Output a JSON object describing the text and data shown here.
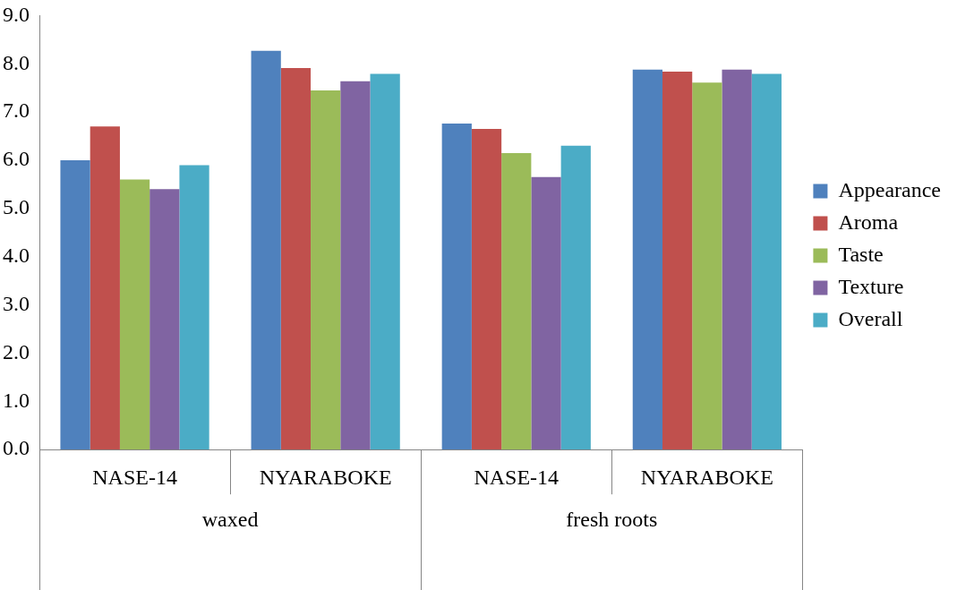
{
  "chart_data": {
    "type": "bar",
    "categories": [
      "NASE-14",
      "NYARABOKE",
      "NASE-14",
      "NYARABOKE"
    ],
    "annotations": [
      "waxed",
      "fresh roots"
    ],
    "series": [
      {
        "name": "Appearance",
        "color": "#4f81bd",
        "values": [
          6.0,
          8.27,
          6.76,
          7.88
        ]
      },
      {
        "name": "Aroma",
        "color": "#c0504d",
        "values": [
          6.7,
          7.91,
          6.65,
          7.84
        ]
      },
      {
        "name": "Taste",
        "color": "#9bbb59",
        "values": [
          5.6,
          7.45,
          6.15,
          7.61
        ]
      },
      {
        "name": "Texture",
        "color": "#8064a2",
        "values": [
          5.4,
          7.64,
          5.65,
          7.88
        ]
      },
      {
        "name": "Overall",
        "color": "#4bacc6",
        "values": [
          5.9,
          7.79,
          6.3,
          7.79
        ]
      }
    ],
    "ylim": [
      0,
      9
    ],
    "yticks": [
      {
        "value": 0,
        "label": "0.0"
      },
      {
        "value": 1,
        "label": "1.0"
      },
      {
        "value": 2,
        "label": "2.0"
      },
      {
        "value": 3,
        "label": "3.0"
      },
      {
        "value": 4,
        "label": "4.0"
      },
      {
        "value": 5,
        "label": "5.0"
      },
      {
        "value": 6,
        "label": "6.0"
      },
      {
        "value": 7,
        "label": "7.0"
      },
      {
        "value": 8,
        "label": "8.0"
      },
      {
        "value": 9,
        "label": "9.0"
      }
    ],
    "grid": false,
    "legend": "right"
  }
}
